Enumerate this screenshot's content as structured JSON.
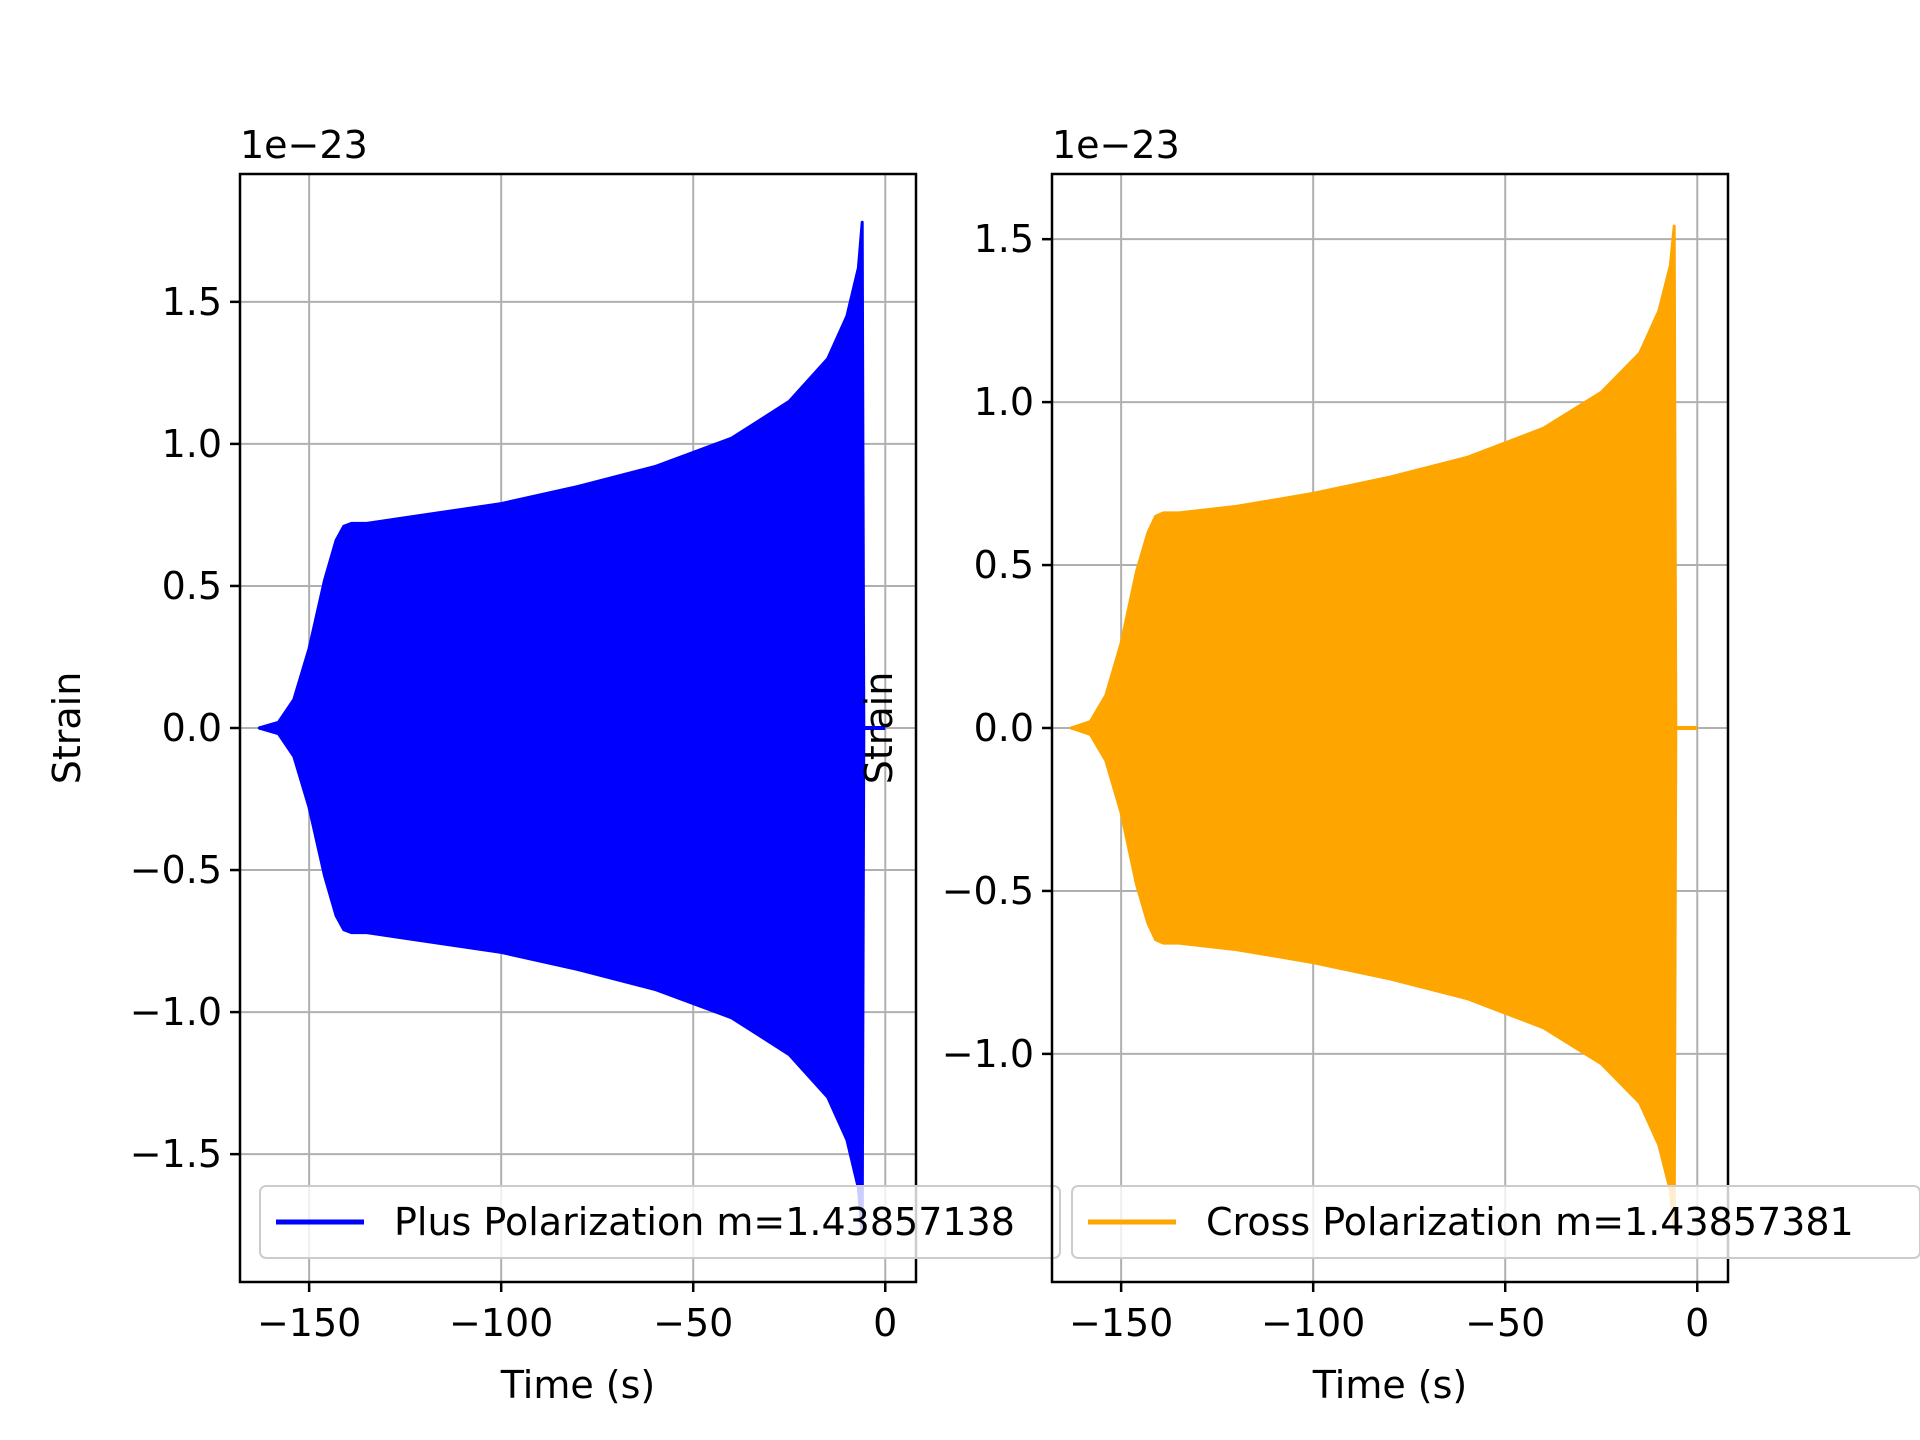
{
  "figure": {
    "background": "#ffffff"
  },
  "chart_data": [
    {
      "type": "line",
      "title": "",
      "xlabel": "Time (s)",
      "ylabel": "Strain",
      "offset_text": "1e−23",
      "xlim": [
        -168,
        8
      ],
      "ylim": [
        -1.95,
        1.95
      ],
      "xticks": [
        -150,
        -100,
        -50,
        0
      ],
      "xtick_labels": [
        "−150",
        "−100",
        "−50",
        "0"
      ],
      "yticks": [
        -1.5,
        -1.0,
        -0.5,
        0.0,
        0.5,
        1.0,
        1.5
      ],
      "ytick_labels": [
        "−1.5",
        "−1.0",
        "−0.5",
        "0.0",
        "0.5",
        "1.0",
        "1.5"
      ],
      "grid": true,
      "legend_position": "lower-right",
      "series": [
        {
          "name": "Plus Polarization m=1.43857138",
          "color": "#0000ff",
          "envelope_x": [
            -163,
            -158,
            -154,
            -150,
            -146,
            -143,
            -141,
            -139,
            -135,
            -120,
            -100,
            -80,
            -60,
            -40,
            -25,
            -15,
            -10,
            -7,
            -6,
            -5.6
          ],
          "envelope_amplitude": [
            0.0,
            0.02,
            0.1,
            0.28,
            0.52,
            0.66,
            0.71,
            0.72,
            0.72,
            0.75,
            0.79,
            0.85,
            0.92,
            1.02,
            1.15,
            1.3,
            1.45,
            1.62,
            1.78,
            0.0
          ]
        }
      ]
    },
    {
      "type": "line",
      "title": "",
      "xlabel": "Time (s)",
      "ylabel": "Strain",
      "offset_text": "1e−23",
      "xlim": [
        -168,
        8
      ],
      "ylim": [
        -1.7,
        1.7
      ],
      "xticks": [
        -150,
        -100,
        -50,
        0
      ],
      "xtick_labels": [
        "−150",
        "−100",
        "−50",
        "0"
      ],
      "yticks": [
        -1.0,
        -0.5,
        0.0,
        0.5,
        1.0,
        1.5
      ],
      "ytick_labels": [
        "−1.0",
        "−0.5",
        "0.0",
        "0.5",
        "1.0",
        "1.5"
      ],
      "grid": true,
      "legend_position": "lower-right",
      "series": [
        {
          "name": "Cross Polarization m=1.43857381",
          "color": "#ffa500",
          "envelope_x": [
            -163,
            -158,
            -154,
            -150,
            -146,
            -143,
            -141,
            -139,
            -135,
            -120,
            -100,
            -80,
            -60,
            -40,
            -25,
            -15,
            -10,
            -7,
            -6,
            -5.6
          ],
          "envelope_amplitude": [
            0.0,
            0.02,
            0.1,
            0.26,
            0.48,
            0.6,
            0.65,
            0.66,
            0.66,
            0.68,
            0.72,
            0.77,
            0.83,
            0.92,
            1.03,
            1.15,
            1.28,
            1.42,
            1.54,
            0.0
          ]
        }
      ]
    }
  ]
}
